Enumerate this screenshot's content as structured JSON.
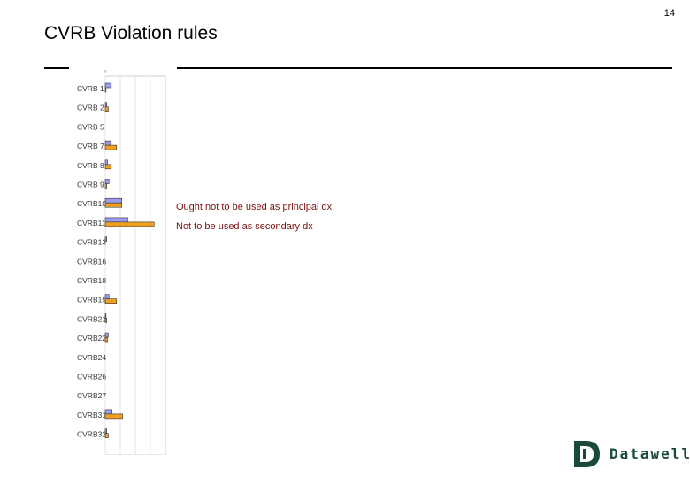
{
  "page_number": "14",
  "title": "CVRB Violation rules",
  "legend": [
    "Ought not to be used as principal dx",
    "Not to be used as secondary dx"
  ],
  "logo": {
    "text": "Datawell",
    "mark": "D"
  },
  "colors": {
    "principal": "#9c9cee",
    "secondary": "#f0a020",
    "legend_text": "#7a1010",
    "logo": "#1a4a3a"
  },
  "chart_data": {
    "type": "bar",
    "orientation": "horizontal",
    "categories": [
      "CVRB 1",
      "CVRB 2",
      "CVRB 5",
      "CVRB 7",
      "CVRB 8",
      "CVRB 9",
      "CVRB10",
      "CVRB11",
      "CVRB13",
      "CVRB16",
      "CVRB18",
      "CVRB19",
      "CVRB21",
      "CVRB22",
      "CVRB24",
      "CVRB26",
      "CVRB27",
      "CVRB31",
      "CVRB32"
    ],
    "series": [
      {
        "name": "Ought not to be used as principal dx",
        "values": [
          8,
          2,
          0,
          7,
          3,
          5,
          22,
          30,
          2,
          0,
          0,
          5,
          1,
          4,
          0,
          0,
          0,
          9,
          2
        ]
      },
      {
        "name": "Not to be used as secondary dx",
        "values": [
          1,
          4,
          0,
          15,
          8,
          2,
          22,
          65,
          0,
          0,
          0,
          15,
          2,
          3,
          0,
          0,
          0,
          23,
          4
        ]
      }
    ],
    "xticks": [
      "0",
      "",
      "",
      ""
    ],
    "xlim": [
      0,
      80
    ],
    "grid": true
  }
}
